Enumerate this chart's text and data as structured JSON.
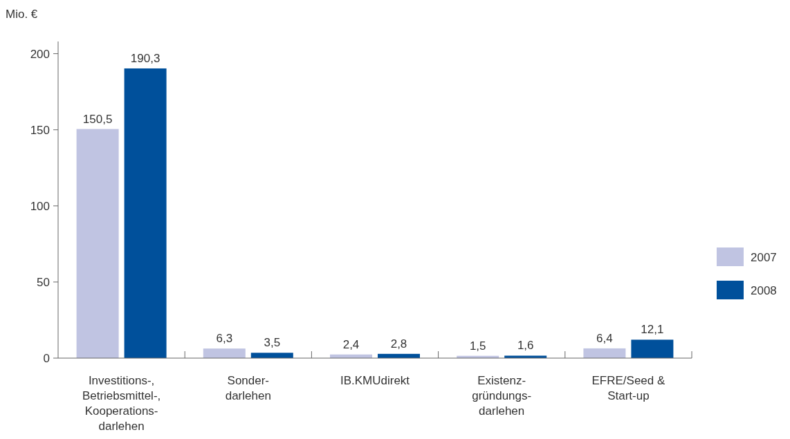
{
  "chart_data": {
    "type": "bar",
    "ylabel": "Mio. €",
    "categories": [
      "Investitions-,\nBetriebsmittel-,\nKooperations-\ndarlehen",
      "Sonder-\ndarlehen",
      "IB.KMUdirekt",
      "Existenz-\ngründungs-\ndarlehen",
      "EFRE/Seed &\nStart-up"
    ],
    "series": [
      {
        "name": "2007",
        "color": "#c0c4e2",
        "values": [
          150.5,
          6.3,
          2.4,
          1.5,
          6.4
        ],
        "value_labels": [
          "150,5",
          "6,3",
          "2,4",
          "1,5",
          "6,4"
        ]
      },
      {
        "name": "2008",
        "color": "#00509b",
        "values": [
          190.3,
          3.5,
          2.8,
          1.6,
          12.1
        ],
        "value_labels": [
          "190,3",
          "3,5",
          "2,8",
          "1,6",
          "12,1"
        ]
      }
    ],
    "ylim": [
      0,
      208
    ],
    "yticks": [
      0,
      50,
      100,
      150,
      200
    ],
    "grid": false,
    "legend": "right"
  }
}
